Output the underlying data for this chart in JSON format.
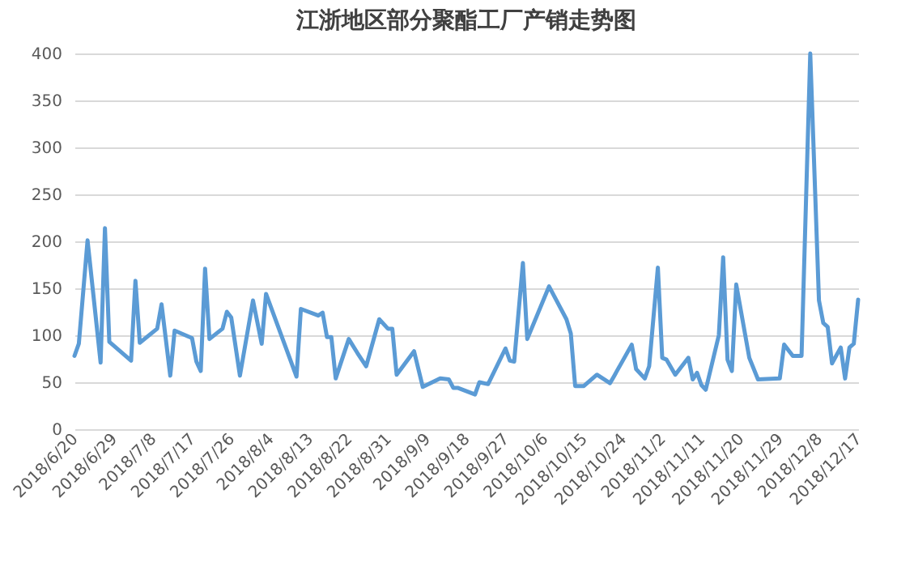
{
  "chart_data": {
    "type": "line",
    "title": "江浙地区部分聚酯工厂产销走势图",
    "x": [
      "2018-06-20",
      "2018-06-21",
      "2018-06-23",
      "2018-06-26",
      "2018-06-27",
      "2018-06-28",
      "2018-07-03",
      "2018-07-04",
      "2018-07-05",
      "2018-07-09",
      "2018-07-10",
      "2018-07-12",
      "2018-07-13",
      "2018-07-17",
      "2018-07-18",
      "2018-07-19",
      "2018-07-20",
      "2018-07-21",
      "2018-07-24",
      "2018-07-25",
      "2018-07-26",
      "2018-07-28",
      "2018-07-31",
      "2018-08-02",
      "2018-08-03",
      "2018-08-10",
      "2018-08-11",
      "2018-08-15",
      "2018-08-16",
      "2018-08-17",
      "2018-08-18",
      "2018-08-19",
      "2018-08-22",
      "2018-08-24",
      "2018-08-26",
      "2018-08-29",
      "2018-08-31",
      "2018-09-01",
      "2018-09-02",
      "2018-09-06",
      "2018-09-08",
      "2018-09-12",
      "2018-09-14",
      "2018-09-15",
      "2018-09-16",
      "2018-09-20",
      "2018-09-21",
      "2018-09-23",
      "2018-09-27",
      "2018-09-28",
      "2018-09-29",
      "2018-10-01",
      "2018-10-02",
      "2018-10-07",
      "2018-10-11",
      "2018-10-12",
      "2018-10-13",
      "2018-10-15",
      "2018-10-18",
      "2018-10-21",
      "2018-10-22",
      "2018-10-26",
      "2018-10-27",
      "2018-10-29",
      "2018-10-30",
      "2018-11-01",
      "2018-11-02",
      "2018-11-03",
      "2018-11-05",
      "2018-11-08",
      "2018-11-09",
      "2018-11-10",
      "2018-11-11",
      "2018-11-12",
      "2018-11-15",
      "2018-11-16",
      "2018-11-17",
      "2018-11-18",
      "2018-11-19",
      "2018-11-22",
      "2018-11-24",
      "2018-11-29",
      "2018-11-30",
      "2018-12-02",
      "2018-12-04",
      "2018-12-06",
      "2018-12-08",
      "2018-12-09",
      "2018-12-10",
      "2018-12-11",
      "2018-12-13",
      "2018-12-14",
      "2018-12-15",
      "2018-12-16",
      "2018-12-17"
    ],
    "series": [
      {
        "color": "#5b9bd5",
        "values": [
          78,
          91,
          201,
          71,
          214,
          93,
          73,
          158,
          92,
          107,
          133,
          57,
          105,
          97,
          72,
          62,
          171,
          96,
          107,
          125,
          119,
          57,
          137,
          91,
          144,
          56,
          128,
          121,
          124,
          98,
          98,
          54,
          96,
          81,
          67,
          117,
          107,
          107,
          58,
          83,
          45,
          54,
          53,
          44,
          44,
          37,
          50,
          48,
          86,
          73,
          72,
          177,
          96,
          152,
          117,
          102,
          46,
          46,
          58,
          49,
          57,
          90,
          64,
          54,
          67,
          172,
          76,
          74,
          58,
          76,
          53,
          60,
          47,
          42,
          100,
          183,
          74,
          62,
          154,
          76,
          53,
          54,
          90,
          78,
          78,
          400,
          137,
          113,
          109,
          70,
          87,
          54,
          87,
          91,
          138
        ]
      }
    ],
    "xlim": [
      "2018-06-20",
      "2018-12-17"
    ],
    "xticks": [
      {
        "value": "2018-06-20",
        "label": "2018/6/20"
      },
      {
        "value": "2018-06-29",
        "label": "2018/6/29"
      },
      {
        "value": "2018-07-08",
        "label": "2018/7/8"
      },
      {
        "value": "2018-07-17",
        "label": "2018/7/17"
      },
      {
        "value": "2018-07-26",
        "label": "2018/7/26"
      },
      {
        "value": "2018-08-04",
        "label": "2018/8/4"
      },
      {
        "value": "2018-08-13",
        "label": "2018/8/13"
      },
      {
        "value": "2018-08-22",
        "label": "2018/8/22"
      },
      {
        "value": "2018-08-31",
        "label": "2018/8/31"
      },
      {
        "value": "2018-09-09",
        "label": "2018/9/9"
      },
      {
        "value": "2018-09-18",
        "label": "2018/9/18"
      },
      {
        "value": "2018-09-27",
        "label": "2018/9/27"
      },
      {
        "value": "2018-10-06",
        "label": "2018/10/6"
      },
      {
        "value": "2018-10-15",
        "label": "2018/10/15"
      },
      {
        "value": "2018-10-24",
        "label": "2018/10/24"
      },
      {
        "value": "2018-11-02",
        "label": "2018/11/2"
      },
      {
        "value": "2018-11-11",
        "label": "2018/11/11"
      },
      {
        "value": "2018-11-20",
        "label": "2018/11/20"
      },
      {
        "value": "2018-11-29",
        "label": "2018/11/29"
      },
      {
        "value": "2018-12-08",
        "label": "2018/12/8"
      },
      {
        "value": "2018-12-17",
        "label": "2018/12/17"
      }
    ],
    "ylim": [
      0,
      400
    ],
    "yticks": [
      0,
      50,
      100,
      150,
      200,
      250,
      300,
      350,
      400
    ],
    "grid": "y",
    "legend": false,
    "marker": "none",
    "line_style": "solid"
  }
}
